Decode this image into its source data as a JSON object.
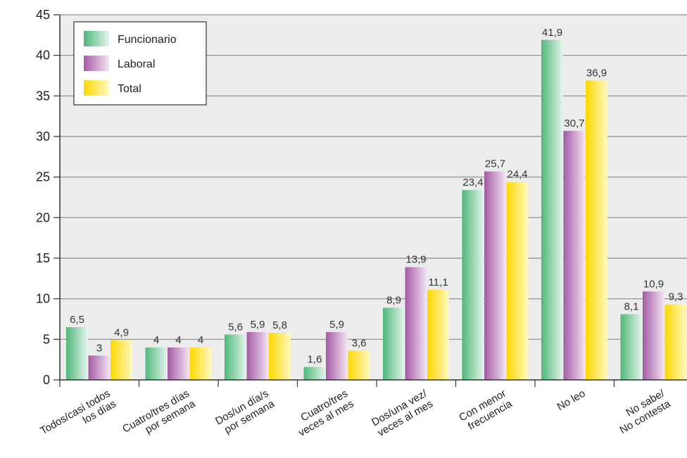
{
  "chart_data": {
    "type": "bar",
    "categories": [
      [
        "Todos/casi todos",
        "los días"
      ],
      [
        "Cuatro/tres días",
        "por semana"
      ],
      [
        "Dos/un día/s",
        "por semana"
      ],
      [
        "Cuatro/tres",
        "veces al mes"
      ],
      [
        "Dos/una vez/",
        "veces al mes"
      ],
      [
        "Con menor",
        "frecuencia"
      ],
      [
        "No leo"
      ],
      [
        "No sabe/",
        "No contesta"
      ]
    ],
    "series": [
      {
        "name": "Funcionario",
        "values": [
          6.5,
          4,
          5.6,
          1.6,
          8.9,
          23.4,
          41.9,
          8.1
        ],
        "labels": [
          "6,5",
          "4",
          "5,6",
          "1,6",
          "8,9",
          "23,4",
          "41,9",
          "8,1"
        ]
      },
      {
        "name": "Laboral",
        "values": [
          3,
          4,
          5.9,
          5.9,
          13.9,
          25.7,
          30.7,
          10.9
        ],
        "labels": [
          "3",
          "4",
          "5,9",
          "5,9",
          "13,9",
          "25,7",
          "30,7",
          "10,9"
        ]
      },
      {
        "name": "Total",
        "values": [
          4.9,
          4,
          5.8,
          3.6,
          11.1,
          24.4,
          36.9,
          9.3
        ],
        "labels": [
          "4,9",
          "4",
          "5,8",
          "3,6",
          "11,1",
          "24,4",
          "36,9",
          "9,3"
        ]
      }
    ],
    "ylim": [
      0,
      45
    ],
    "yticks": [
      0,
      5,
      10,
      15,
      20,
      25,
      30,
      35,
      40,
      45
    ],
    "grid": true,
    "legend_position": "top-left",
    "colors": {
      "Funcionario": [
        "#4fb87a",
        "#e6f5ec"
      ],
      "Laboral": [
        "#a45aa6",
        "#f3e6f3"
      ],
      "Total": [
        "#ffd800",
        "#fff8c0"
      ],
      "plot_background": "#ececec",
      "grid": "#8a8a8a"
    }
  }
}
